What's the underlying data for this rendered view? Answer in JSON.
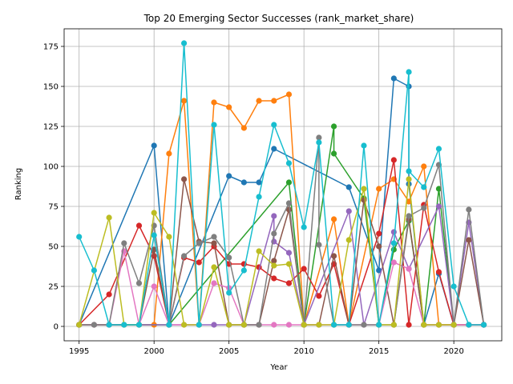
{
  "chart_data": {
    "type": "line",
    "title": "Top 20 Emerging Sector Successes (rank_market_share)",
    "xlabel": "Year",
    "ylabel": "Ranking",
    "xlim": [
      1994,
      2023.2
    ],
    "ylim": [
      -9,
      186
    ],
    "xticks": [
      1995,
      2000,
      2005,
      2010,
      2015,
      2020
    ],
    "yticks": [
      0,
      25,
      50,
      75,
      100,
      125,
      150,
      175
    ],
    "grid": true,
    "legend": "none",
    "series": [
      {
        "color": "#1f77b4",
        "points": [
          [
            1995,
            1
          ],
          [
            2000,
            113
          ],
          [
            2001,
            1
          ],
          [
            2005,
            94
          ],
          [
            2006,
            90
          ],
          [
            2007,
            90
          ],
          [
            2008,
            111
          ],
          [
            2013,
            87
          ],
          [
            2015,
            35
          ],
          [
            2016,
            155
          ],
          [
            2017,
            150
          ],
          [
            2017,
            89
          ],
          [
            2018,
            1
          ],
          [
            2019,
            33
          ],
          [
            2020,
            1
          ]
        ]
      },
      {
        "color": "#ff7f0e",
        "points": [
          [
            1995,
            1
          ],
          [
            2000,
            1
          ],
          [
            2001,
            108
          ],
          [
            2002,
            141
          ],
          [
            2003,
            1
          ],
          [
            2004,
            140
          ],
          [
            2005,
            137
          ],
          [
            2006,
            124
          ],
          [
            2007,
            141
          ],
          [
            2008,
            141
          ],
          [
            2009,
            145
          ],
          [
            2010,
            1
          ],
          [
            2012,
            67
          ],
          [
            2013,
            1
          ],
          [
            2015,
            86
          ],
          [
            2016,
            92
          ],
          [
            2017,
            78
          ],
          [
            2018,
            100
          ],
          [
            2019,
            1
          ],
          [
            2020,
            1
          ]
        ]
      },
      {
        "color": "#2ca02c",
        "points": [
          [
            1995,
            1
          ],
          [
            2001,
            1
          ],
          [
            2009,
            90
          ],
          [
            2010,
            1
          ],
          [
            2012,
            125
          ],
          [
            2012,
            108
          ],
          [
            2014,
            80
          ],
          [
            2015,
            1
          ],
          [
            2016,
            48
          ],
          [
            2017,
            66
          ],
          [
            2018,
            1
          ],
          [
            2019,
            86
          ],
          [
            2020,
            1
          ],
          [
            2021,
            1
          ],
          [
            2022,
            1
          ]
        ]
      },
      {
        "color": "#d62728",
        "points": [
          [
            1995,
            1
          ],
          [
            1997,
            20
          ],
          [
            1999,
            63
          ],
          [
            2000,
            44
          ],
          [
            2001,
            1
          ],
          [
            2002,
            43
          ],
          [
            2003,
            40
          ],
          [
            2004,
            50
          ],
          [
            2005,
            39
          ],
          [
            2006,
            39
          ],
          [
            2007,
            37
          ],
          [
            2008,
            30
          ],
          [
            2009,
            27
          ],
          [
            2010,
            36
          ],
          [
            2011,
            19
          ],
          [
            2012,
            39
          ],
          [
            2013,
            1
          ],
          [
            2015,
            58
          ],
          [
            2016,
            104
          ],
          [
            2017,
            1
          ],
          [
            2018,
            76
          ],
          [
            2019,
            34
          ],
          [
            2020,
            1
          ],
          [
            2021,
            1
          ],
          [
            2022,
            1
          ]
        ]
      },
      {
        "color": "#9467bd",
        "points": [
          [
            1995,
            1
          ],
          [
            1999,
            1
          ],
          [
            2003,
            1
          ],
          [
            2004,
            1
          ],
          [
            2005,
            1
          ],
          [
            2006,
            1
          ],
          [
            2008,
            69
          ],
          [
            2008,
            53
          ],
          [
            2009,
            46
          ],
          [
            2010,
            1
          ],
          [
            2013,
            72
          ],
          [
            2014,
            1
          ],
          [
            2016,
            59
          ],
          [
            2017,
            36
          ],
          [
            2019,
            75
          ],
          [
            2020,
            1
          ],
          [
            2021,
            65
          ],
          [
            2022,
            1
          ]
        ]
      },
      {
        "color": "#8c564b",
        "points": [
          [
            1995,
            1
          ],
          [
            1996,
            1
          ],
          [
            1997,
            1
          ],
          [
            1998,
            1
          ],
          [
            1999,
            1
          ],
          [
            2000,
            48
          ],
          [
            2001,
            1
          ],
          [
            2002,
            92
          ],
          [
            2003,
            53
          ],
          [
            2004,
            52
          ],
          [
            2005,
            1
          ],
          [
            2006,
            1
          ],
          [
            2007,
            1
          ],
          [
            2008,
            41
          ],
          [
            2009,
            73
          ],
          [
            2010,
            1
          ],
          [
            2011,
            1
          ],
          [
            2012,
            44
          ],
          [
            2013,
            1
          ],
          [
            2014,
            79
          ],
          [
            2015,
            50
          ],
          [
            2016,
            1
          ],
          [
            2017,
            67
          ],
          [
            2018,
            1
          ],
          [
            2019,
            1
          ],
          [
            2020,
            1
          ],
          [
            2021,
            54
          ],
          [
            2022,
            1
          ]
        ]
      },
      {
        "color": "#e377c2",
        "points": [
          [
            1995,
            1
          ],
          [
            1996,
            1
          ],
          [
            1997,
            1
          ],
          [
            1998,
            47
          ],
          [
            1999,
            1
          ],
          [
            2000,
            25
          ],
          [
            2001,
            1
          ],
          [
            2002,
            1
          ],
          [
            2003,
            1
          ],
          [
            2004,
            27
          ],
          [
            2005,
            24
          ],
          [
            2006,
            1
          ],
          [
            2007,
            1
          ],
          [
            2008,
            1
          ],
          [
            2009,
            1
          ],
          [
            2010,
            1
          ],
          [
            2011,
            1
          ],
          [
            2012,
            1
          ],
          [
            2013,
            1
          ],
          [
            2014,
            1
          ],
          [
            2015,
            1
          ],
          [
            2016,
            40
          ],
          [
            2017,
            36
          ],
          [
            2018,
            1
          ],
          [
            2019,
            1
          ],
          [
            2020,
            1
          ],
          [
            2021,
            1
          ],
          [
            2022,
            1
          ]
        ]
      },
      {
        "color": "#7f7f7f",
        "points": [
          [
            1995,
            1
          ],
          [
            1996,
            1
          ],
          [
            1997,
            1
          ],
          [
            1998,
            52
          ],
          [
            1999,
            27
          ],
          [
            2000,
            63
          ],
          [
            2001,
            1
          ],
          [
            2002,
            44
          ],
          [
            2003,
            52
          ],
          [
            2004,
            56
          ],
          [
            2005,
            43
          ],
          [
            2006,
            1
          ],
          [
            2007,
            1
          ],
          [
            2008,
            58
          ],
          [
            2009,
            77
          ],
          [
            2010,
            1
          ],
          [
            2011,
            118
          ],
          [
            2011,
            51
          ],
          [
            2012,
            1
          ],
          [
            2014,
            1
          ],
          [
            2015,
            1
          ],
          [
            2016,
            1
          ],
          [
            2017,
            69
          ],
          [
            2018,
            74
          ],
          [
            2019,
            101
          ],
          [
            2020,
            1
          ],
          [
            2021,
            73
          ],
          [
            2022,
            1
          ]
        ]
      },
      {
        "color": "#bcbd22",
        "points": [
          [
            1995,
            1
          ],
          [
            1997,
            68
          ],
          [
            1998,
            1
          ],
          [
            1999,
            1
          ],
          [
            2000,
            71
          ],
          [
            2001,
            56
          ],
          [
            2002,
            1
          ],
          [
            2003,
            1
          ],
          [
            2004,
            37
          ],
          [
            2005,
            1
          ],
          [
            2006,
            1
          ],
          [
            2007,
            47
          ],
          [
            2008,
            38
          ],
          [
            2009,
            39
          ],
          [
            2010,
            1
          ],
          [
            2011,
            1
          ],
          [
            2012,
            1
          ],
          [
            2013,
            54
          ],
          [
            2014,
            86
          ],
          [
            2015,
            1
          ],
          [
            2016,
            1
          ],
          [
            2017,
            92
          ],
          [
            2018,
            1
          ],
          [
            2019,
            1
          ],
          [
            2020,
            1
          ]
        ]
      },
      {
        "color": "#17becf",
        "points": [
          [
            1995,
            56
          ],
          [
            1996,
            35
          ],
          [
            1997,
            1
          ],
          [
            1998,
            1
          ],
          [
            1999,
            1
          ],
          [
            2000,
            57
          ],
          [
            2001,
            1
          ],
          [
            2002,
            177
          ],
          [
            2003,
            1
          ],
          [
            2004,
            126
          ],
          [
            2005,
            21
          ],
          [
            2006,
            35
          ],
          [
            2007,
            81
          ],
          [
            2008,
            126
          ],
          [
            2009,
            102
          ],
          [
            2010,
            62
          ],
          [
            2011,
            115
          ],
          [
            2012,
            1
          ],
          [
            2013,
            1
          ],
          [
            2014,
            113
          ],
          [
            2015,
            1
          ],
          [
            2016,
            52
          ],
          [
            2017,
            159
          ],
          [
            2017,
            97
          ],
          [
            2018,
            87
          ],
          [
            2019,
            111
          ],
          [
            2020,
            25
          ],
          [
            2021,
            1
          ],
          [
            2022,
            1
          ]
        ]
      }
    ]
  }
}
